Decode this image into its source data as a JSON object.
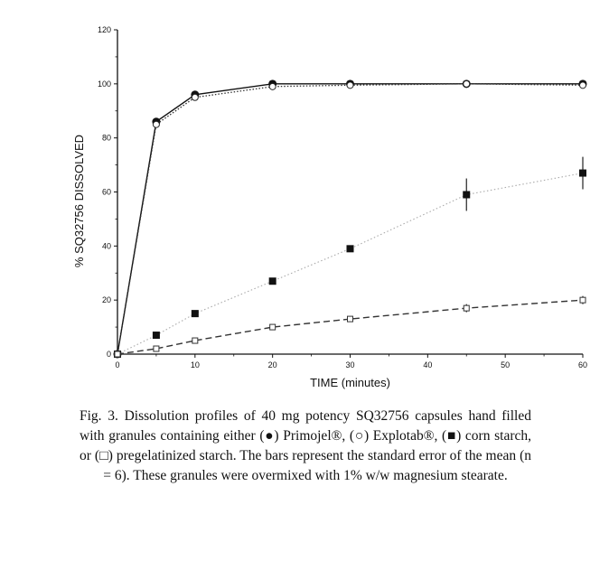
{
  "chart_data": {
    "type": "line",
    "title": "",
    "xlabel": "TIME (minutes)",
    "ylabel": "% SQ32756 DISSOLVED",
    "xlim": [
      0,
      60
    ],
    "ylim": [
      0,
      120
    ],
    "xticks": [
      0,
      10,
      20,
      30,
      40,
      50,
      60
    ],
    "yticks": [
      0,
      20,
      40,
      60,
      80,
      100,
      120
    ],
    "grid": false,
    "legend": "none",
    "series": [
      {
        "marker": "filled-circle",
        "line": "solid",
        "x": [
          0,
          5,
          10,
          20,
          30,
          45,
          60
        ],
        "y": [
          0,
          86,
          96,
          100,
          100,
          100,
          100
        ]
      },
      {
        "marker": "open-circle",
        "line": "dotted",
        "x": [
          0,
          5,
          10,
          20,
          30,
          45,
          60
        ],
        "y": [
          0,
          85,
          95,
          99,
          99.5,
          100,
          99.5
        ]
      },
      {
        "marker": "filled-square",
        "line": "dotted-light",
        "x": [
          0,
          5,
          10,
          20,
          30,
          45,
          60
        ],
        "y": [
          0,
          7,
          15,
          27,
          39,
          59,
          67
        ],
        "error": [
          0,
          0,
          0,
          0,
          0,
          6,
          6
        ]
      },
      {
        "marker": "open-square",
        "line": "dashed",
        "x": [
          0,
          5,
          10,
          20,
          30,
          45,
          60
        ],
        "y": [
          0,
          2,
          5,
          10,
          13,
          17,
          20
        ],
        "error": [
          0,
          0,
          0,
          1,
          1,
          1.5,
          1.5
        ]
      }
    ]
  },
  "caption": {
    "text": "Fig. 3. Dissolution profiles of 40 mg potency SQ32756 capsules hand filled with granules containing either (●) Primojel®, (○) Explotab®, (■) corn starch, or (□) pregelatinized starch. The bars represent the standard error of the mean (n = 6). These granules were overmixed with 1% w/w magnesium stearate."
  }
}
